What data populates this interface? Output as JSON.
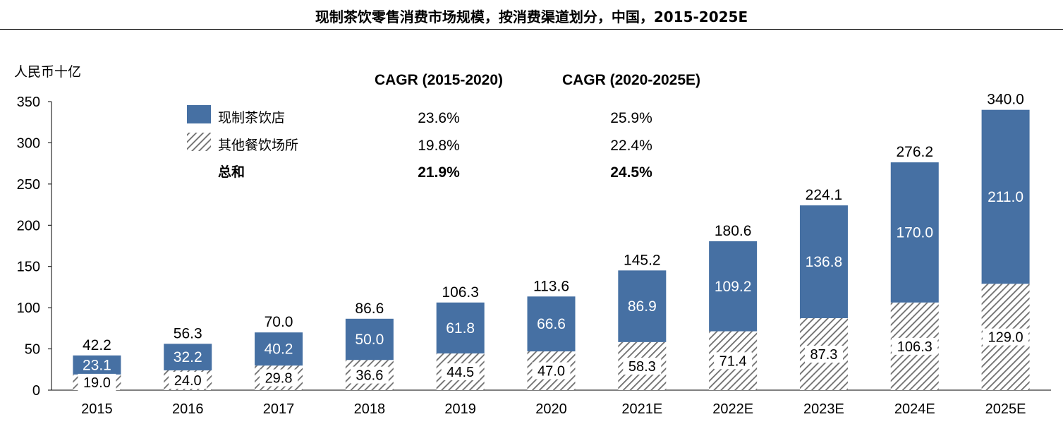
{
  "title": "现制茶饮零售消费市场规模，按消费渠道划分，中国，2015-2025E",
  "colors": {
    "fresh_tea": "#4670a3",
    "other": "#808080",
    "text_on_bar": "#ffffff",
    "axis": "#000000"
  },
  "chart_data": {
    "type": "bar",
    "stacked": true,
    "title": "现制茶饮零售消费市场规模，按消费渠道划分，中国，2015-2025E",
    "ylabel": "人民币十亿",
    "xlabel": "",
    "ylim": [
      0,
      350
    ],
    "yticks": [
      0,
      50,
      100,
      150,
      200,
      250,
      300,
      350
    ],
    "grid": false,
    "legend_position": "top-left",
    "categories": [
      "2015",
      "2016",
      "2017",
      "2018",
      "2019",
      "2020",
      "2021E",
      "2022E",
      "2023E",
      "2024E",
      "2025E"
    ],
    "series": [
      {
        "name": "其他餐饮场所",
        "pattern": "hatched",
        "values": [
          19.0,
          24.0,
          29.8,
          36.6,
          44.5,
          47.0,
          58.3,
          71.4,
          87.3,
          106.3,
          129.0
        ]
      },
      {
        "name": "现制茶饮店",
        "pattern": "solid",
        "values": [
          23.1,
          32.2,
          40.2,
          50.0,
          61.8,
          66.6,
          86.9,
          109.2,
          136.8,
          170.0,
          211.0
        ]
      }
    ],
    "totals": [
      42.2,
      56.3,
      70.0,
      86.6,
      106.3,
      113.6,
      145.2,
      180.6,
      224.1,
      276.2,
      340.0
    ],
    "cagr_table": {
      "headers": [
        "CAGR (2015-2020)",
        "CAGR (2020-2025E)"
      ],
      "rows": [
        {
          "label": "现制茶饮店",
          "values": [
            "23.6%",
            "25.9%"
          ]
        },
        {
          "label": "其他餐饮场所",
          "values": [
            "19.8%",
            "22.4%"
          ]
        },
        {
          "label": "总和",
          "values": [
            "21.9%",
            "24.5%"
          ]
        }
      ]
    }
  }
}
